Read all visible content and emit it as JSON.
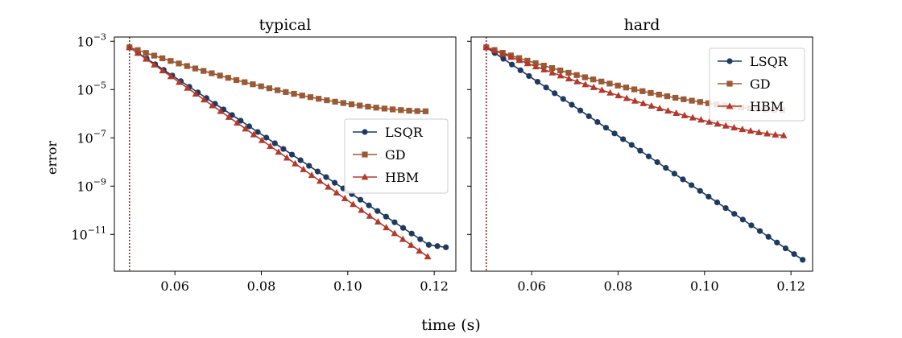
{
  "figure": {
    "xlabel": "time (s)",
    "ylabel": "error"
  },
  "chart_data": [
    {
      "type": "line",
      "title": "typical",
      "xlabel": "time (s)",
      "ylabel": "error",
      "yscale": "log",
      "xlim": [
        0.046,
        0.125
      ],
      "ylim": [
        3e-13,
        0.0015
      ],
      "xticks": [
        {
          "v": 0.06,
          "label": "0.06"
        },
        {
          "v": 0.08,
          "label": "0.08"
        },
        {
          "v": 0.1,
          "label": "0.10"
        },
        {
          "v": 0.12,
          "label": "0.12"
        }
      ],
      "yticks": [
        {
          "exp": -3,
          "label": "10",
          "sup": "−3"
        },
        {
          "exp": -5,
          "label": "10",
          "sup": "−5"
        },
        {
          "exp": -7,
          "label": "10",
          "sup": "−7"
        },
        {
          "exp": -9,
          "label": "10",
          "sup": "−9"
        },
        {
          "exp": -11,
          "label": "10",
          "sup": "−11"
        }
      ],
      "vline_x": 0.0495,
      "legend": "center-right",
      "series": [
        {
          "name": "LSQR",
          "color": "#1f3a5f",
          "marker": "circle",
          "x0": 0.0495,
          "x1": 0.1227,
          "exp_start": -3.25,
          "exp_end": -11.9,
          "n": 38,
          "tail_flatten": 2
        },
        {
          "name": "GD",
          "color": "#9a5a36",
          "marker": "square",
          "x0": 0.0495,
          "x1": 0.118,
          "exp_start": -3.25,
          "exp_end": -5.9,
          "n": 37,
          "shape": "gd"
        },
        {
          "name": "HBM",
          "color": "#b03a2e",
          "marker": "triangle",
          "x0": 0.0495,
          "x1": 0.1185,
          "exp_start": -3.25,
          "exp_end": -11.92,
          "n": 37
        }
      ]
    },
    {
      "type": "line",
      "title": "hard",
      "xlabel": "time (s)",
      "ylabel": "error",
      "yscale": "log",
      "xlim": [
        0.046,
        0.125
      ],
      "ylim": [
        3e-13,
        0.0015
      ],
      "xticks": [
        {
          "v": 0.06,
          "label": "0.06"
        },
        {
          "v": 0.08,
          "label": "0.08"
        },
        {
          "v": 0.1,
          "label": "0.10"
        },
        {
          "v": 0.12,
          "label": "0.12"
        }
      ],
      "yticks": [
        {
          "exp": -3,
          "label": "",
          "sup": ""
        },
        {
          "exp": -5,
          "label": "",
          "sup": ""
        },
        {
          "exp": -7,
          "label": "",
          "sup": ""
        },
        {
          "exp": -9,
          "label": "",
          "sup": ""
        },
        {
          "exp": -11,
          "label": "",
          "sup": ""
        }
      ],
      "vline_x": 0.0495,
      "legend": "top-right",
      "series": [
        {
          "name": "LSQR",
          "color": "#1f3a5f",
          "marker": "circle",
          "x0": 0.0495,
          "x1": 0.1227,
          "exp_start": -3.25,
          "exp_end": -12.05,
          "n": 38
        },
        {
          "name": "GD",
          "color": "#9a5a36",
          "marker": "square",
          "x0": 0.0495,
          "x1": 0.118,
          "exp_start": -3.25,
          "exp_end": -5.85,
          "n": 37,
          "shape": "gd"
        },
        {
          "name": "HBM",
          "color": "#b03a2e",
          "marker": "triangle",
          "x0": 0.0495,
          "x1": 0.1183,
          "exp_start": -3.25,
          "exp_end": -6.9,
          "n": 37,
          "shape": "hbm"
        }
      ]
    }
  ]
}
